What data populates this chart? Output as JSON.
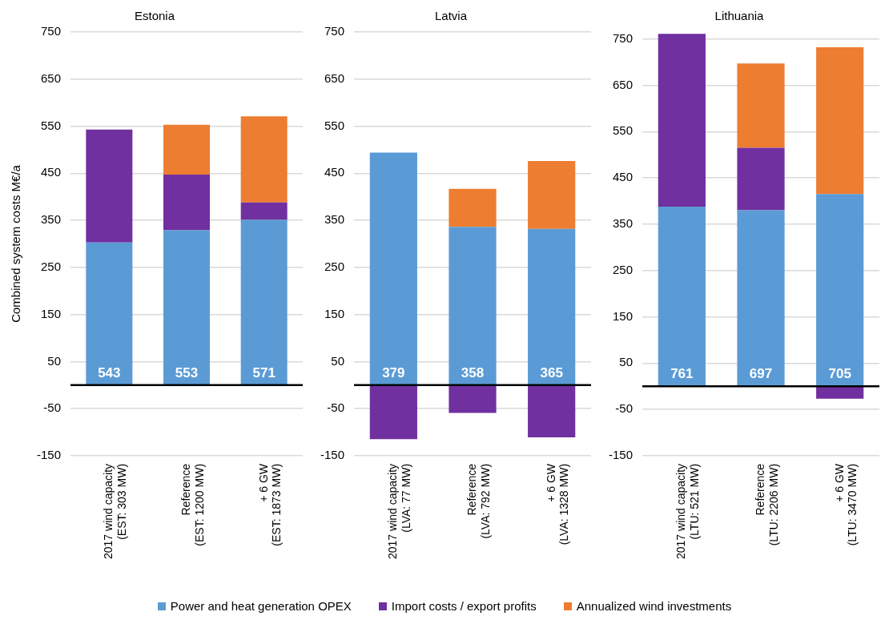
{
  "chart_data": [
    {
      "type": "bar",
      "stacked": true,
      "title": "Estonia",
      "ylabel": "Combined system costs M€/a",
      "categories": [
        "2017 wind capacity\n(EST: 303 MW)",
        "Reference\n(EST: 1200 MW)",
        "+ 6 GW\n(EST: 1873 MW)"
      ],
      "series": [
        {
          "name": "Power and heat generation OPEX",
          "color": "#5b9bd5",
          "values": [
            303,
            329,
            351
          ]
        },
        {
          "name": "Import costs / export profits",
          "color": "#7030a0",
          "values": [
            240,
            118,
            37
          ]
        },
        {
          "name": "Annualized wind investments",
          "color": "#ed7d31",
          "values": [
            null,
            106,
            183
          ]
        }
      ],
      "totals": [
        "543",
        "553",
        "571"
      ],
      "ylim": [
        -150,
        750
      ],
      "yticks": [
        -150,
        -50,
        50,
        150,
        250,
        350,
        450,
        550,
        650,
        750
      ],
      "grid": "y",
      "legend": "bottom",
      "ref_lines": [
        {
          "axis": "y",
          "value": 0,
          "color": "#000000"
        }
      ]
    },
    {
      "type": "bar",
      "stacked": true,
      "title": "Latvia",
      "categories": [
        "2017 wind capacity\n(LVA: 77 MW)",
        "Reference\n(LVA: 792 MW)",
        "+ 6 GW\n(LVA: 1328 MW)"
      ],
      "series": [
        {
          "color": "#5b9bd5",
          "values": [
            494,
            336,
            332
          ]
        },
        {
          "color": "#7030a0",
          "values": [
            -115,
            -59,
            -111
          ]
        },
        {
          "color": "#ed7d31",
          "values": [
            null,
            81,
            144
          ]
        }
      ],
      "totals": [
        "379",
        "358",
        "365"
      ],
      "ylim": [
        -150,
        750
      ],
      "yticks": [
        -150,
        -50,
        50,
        150,
        250,
        350,
        450,
        550,
        650,
        750
      ],
      "grid": "y",
      "ref_lines": [
        {
          "axis": "y",
          "value": 0,
          "color": "#000000"
        }
      ]
    },
    {
      "type": "bar",
      "stacked": true,
      "title": "Lithuania",
      "categories": [
        "2017 wind capacity\n(LTU: 521 MW)",
        "Reference\n(LTU: 2206 MW)",
        "+ 6 GW\n(LTU: 3470 MW)"
      ],
      "series": [
        {
          "color": "#5b9bd5",
          "values": [
            388,
            380,
            415
          ]
        },
        {
          "color": "#7030a0",
          "values": [
            373,
            135,
            -27
          ]
        },
        {
          "color": "#ed7d31",
          "values": [
            null,
            182,
            317
          ]
        }
      ],
      "totals": [
        "761",
        "697",
        "705"
      ],
      "ylim": [
        -150,
        765
      ],
      "yticks": [
        -150,
        -50,
        50,
        150,
        250,
        350,
        450,
        550,
        650,
        750
      ],
      "grid": "y",
      "ref_lines": [
        {
          "axis": "y",
          "value": 0,
          "color": "#000000"
        }
      ]
    }
  ]
}
